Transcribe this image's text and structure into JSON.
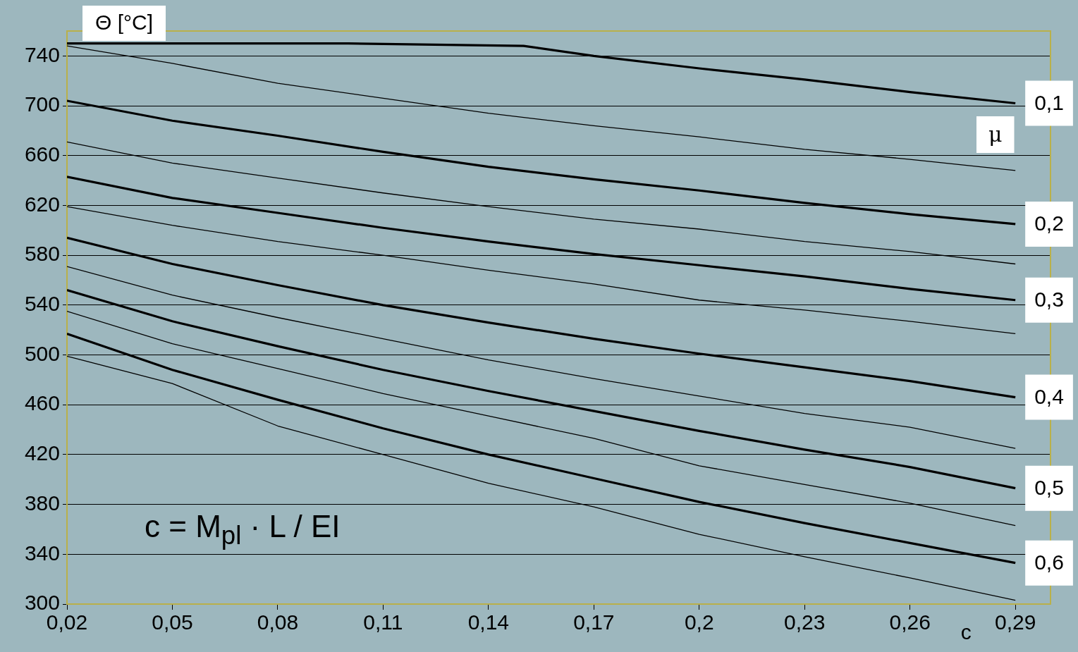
{
  "chart_data": {
    "type": "line",
    "ylabel": "Θ [°C]",
    "xlabel": "c",
    "legend_title": "μ",
    "annotations": [
      "c = M$_{pl}$ · L / EI"
    ],
    "x": [
      0.02,
      0.05,
      0.08,
      0.11,
      0.14,
      0.17,
      0.2,
      0.23,
      0.26,
      0.29
    ],
    "series": [
      {
        "name": "0,1",
        "color": "#000000",
        "x": [
          0.02,
          0.1,
          0.15,
          0.17,
          0.2,
          0.23,
          0.26,
          0.29
        ],
        "values": [
          750,
          750,
          748,
          740,
          730,
          721,
          711,
          702
        ]
      },
      {
        "color": "#000000",
        "values": [
          748,
          734,
          718,
          706,
          694,
          684,
          675,
          665,
          657,
          648
        ]
      },
      {
        "name": "0,2",
        "color": "#000000",
        "values": [
          704,
          688,
          676,
          663,
          651,
          641,
          632,
          622,
          613,
          605
        ]
      },
      {
        "color": "#000000",
        "values": [
          671,
          654,
          642,
          630,
          619,
          609,
          601,
          591,
          583,
          573
        ]
      },
      {
        "name": "0,3",
        "color": "#000000",
        "values": [
          643,
          626,
          614,
          602,
          591,
          581,
          572,
          563,
          553,
          544
        ]
      },
      {
        "color": "#000000",
        "values": [
          619,
          604,
          591,
          580,
          568,
          557,
          544,
          536,
          527,
          517
        ]
      },
      {
        "name": "0,4",
        "color": "#000000",
        "values": [
          594,
          573,
          556,
          540,
          526,
          513,
          501,
          490,
          479,
          466
        ]
      },
      {
        "color": "#000000",
        "values": [
          571,
          548,
          530,
          513,
          496,
          481,
          467,
          453,
          442,
          425
        ]
      },
      {
        "name": "0,5",
        "color": "#000000",
        "values": [
          552,
          527,
          507,
          488,
          471,
          455,
          439,
          424,
          410,
          393
        ]
      },
      {
        "color": "#000000",
        "values": [
          535,
          509,
          489,
          469,
          451,
          433,
          411,
          396,
          381,
          363
        ]
      },
      {
        "name": "0,6",
        "color": "#000000",
        "values": [
          517,
          488,
          464,
          441,
          420,
          401,
          382,
          365,
          349,
          333
        ]
      },
      {
        "color": "#000000",
        "values": [
          499,
          477,
          443,
          420,
          397,
          378,
          356,
          338,
          321,
          303
        ]
      }
    ],
    "xlim": [
      0.02,
      0.3
    ],
    "ylim": [
      300,
      760
    ],
    "xticks": [
      {
        "value": 0.02,
        "label": "0,02"
      },
      {
        "value": 0.05,
        "label": "0,05"
      },
      {
        "value": 0.08,
        "label": "0,08"
      },
      {
        "value": 0.11,
        "label": "0,11"
      },
      {
        "value": 0.14,
        "label": "0,14"
      },
      {
        "value": 0.17,
        "label": "0,17"
      },
      {
        "value": 0.2,
        "label": "0,2"
      },
      {
        "value": 0.23,
        "label": "0,23"
      },
      {
        "value": 0.26,
        "label": "0,26"
      },
      {
        "value": 0.29,
        "label": "0,29"
      }
    ],
    "yticks": [
      300,
      340,
      380,
      420,
      460,
      500,
      540,
      580,
      620,
      660,
      700,
      740
    ],
    "grid": "y",
    "marker": "none",
    "line_style": "solid"
  }
}
